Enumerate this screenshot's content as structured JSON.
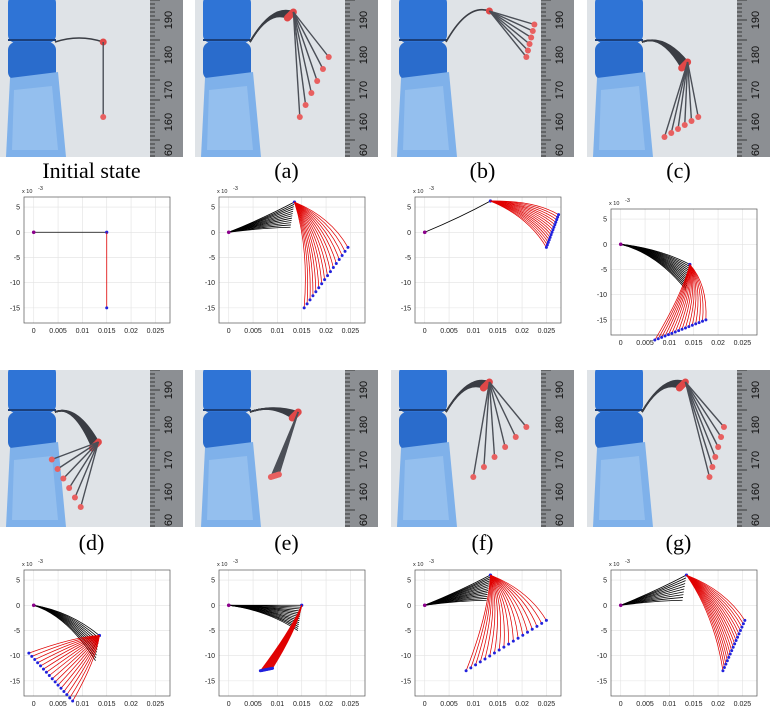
{
  "captions": [
    "Initial state",
    "(a)",
    "(b)",
    "(c)",
    "(d)",
    "(e)",
    "(f)",
    "(g)"
  ],
  "ruler_labels": [
    "190",
    "180",
    "170",
    "160",
    "60"
  ],
  "axes": {
    "exponent": "x 10",
    "exponent_power": "-3",
    "x_ticks": [
      "0",
      "0.005",
      "0.01",
      "0.015",
      "0.02",
      "0.025"
    ],
    "y_ticks": [
      "5",
      "0",
      "-5",
      "-10",
      "-15"
    ]
  },
  "colors": {
    "black_curve": "#000000",
    "red_curve": "#e00000",
    "endpoint": "#2222dd",
    "origin": "#8b008b",
    "grid": "#e2e2e2"
  },
  "chart_data": [
    {
      "panel": "Initial state",
      "type": "line",
      "xlim": [
        -0.002,
        0.028
      ],
      "ylim": [
        -18,
        7
      ],
      "black": {
        "count": 1,
        "tip": [
          0.015,
          0
        ]
      },
      "red": {
        "count": 1,
        "ends": [
          [
            0.015,
            -15
          ]
        ]
      }
    },
    {
      "panel": "(a)",
      "type": "line",
      "xlim": [
        -0.002,
        0.028
      ],
      "ylim": [
        -18,
        7
      ],
      "black": {
        "count": 12,
        "tip": [
          0.0135,
          6
        ]
      },
      "red": {
        "count": 16,
        "ends": [
          [
            0.0155,
            -15
          ],
          [
            0.0245,
            -3
          ]
        ]
      }
    },
    {
      "panel": "(b)",
      "type": "line",
      "xlim": [
        -0.002,
        0.028
      ],
      "ylim": [
        -18,
        7
      ],
      "black": {
        "count": 1,
        "tip": [
          0.0135,
          6.2
        ]
      },
      "red": {
        "count": 14,
        "ends": [
          [
            0.025,
            -3
          ],
          [
            0.0275,
            3.5
          ]
        ]
      }
    },
    {
      "panel": "(c)",
      "type": "line",
      "xlim": [
        -0.002,
        0.028
      ],
      "ylim": [
        -18,
        7
      ],
      "black": {
        "count": 14,
        "tip": [
          0.0142,
          -4
        ]
      },
      "red": {
        "count": 16,
        "ends": [
          [
            0.007,
            -19
          ],
          [
            0.0175,
            -15
          ]
        ]
      }
    },
    {
      "panel": "(d)",
      "type": "line",
      "xlim": [
        -0.002,
        0.028
      ],
      "ylim": [
        -18,
        7
      ],
      "black": {
        "count": 10,
        "tip": [
          0.0135,
          -6
        ]
      },
      "red": {
        "count": 16,
        "ends": [
          [
            -0.001,
            -9.5
          ],
          [
            0.008,
            -19
          ]
        ]
      }
    },
    {
      "panel": "(e)",
      "type": "line",
      "xlim": [
        -0.002,
        0.028
      ],
      "ylim": [
        -18,
        7
      ],
      "black": {
        "count": 14,
        "tip": [
          0.015,
          0
        ]
      },
      "red": {
        "count": 16,
        "ends": [
          [
            0.0065,
            -13
          ],
          [
            0.009,
            -12.5
          ]
        ]
      }
    },
    {
      "panel": "(f)",
      "type": "line",
      "xlim": [
        -0.002,
        0.028
      ],
      "ylim": [
        -18,
        7
      ],
      "black": {
        "count": 14,
        "tip": [
          0.0135,
          6
        ]
      },
      "red": {
        "count": 18,
        "ends": [
          [
            0.0085,
            -13
          ],
          [
            0.025,
            -3
          ]
        ]
      }
    },
    {
      "panel": "(g)",
      "type": "line",
      "xlim": [
        -0.002,
        0.028
      ],
      "ylim": [
        -18,
        7
      ],
      "black": {
        "count": 10,
        "tip": [
          0.0135,
          6
        ]
      },
      "red": {
        "count": 16,
        "ends": [
          [
            0.021,
            -13
          ],
          [
            0.0255,
            -3
          ]
        ]
      }
    }
  ]
}
